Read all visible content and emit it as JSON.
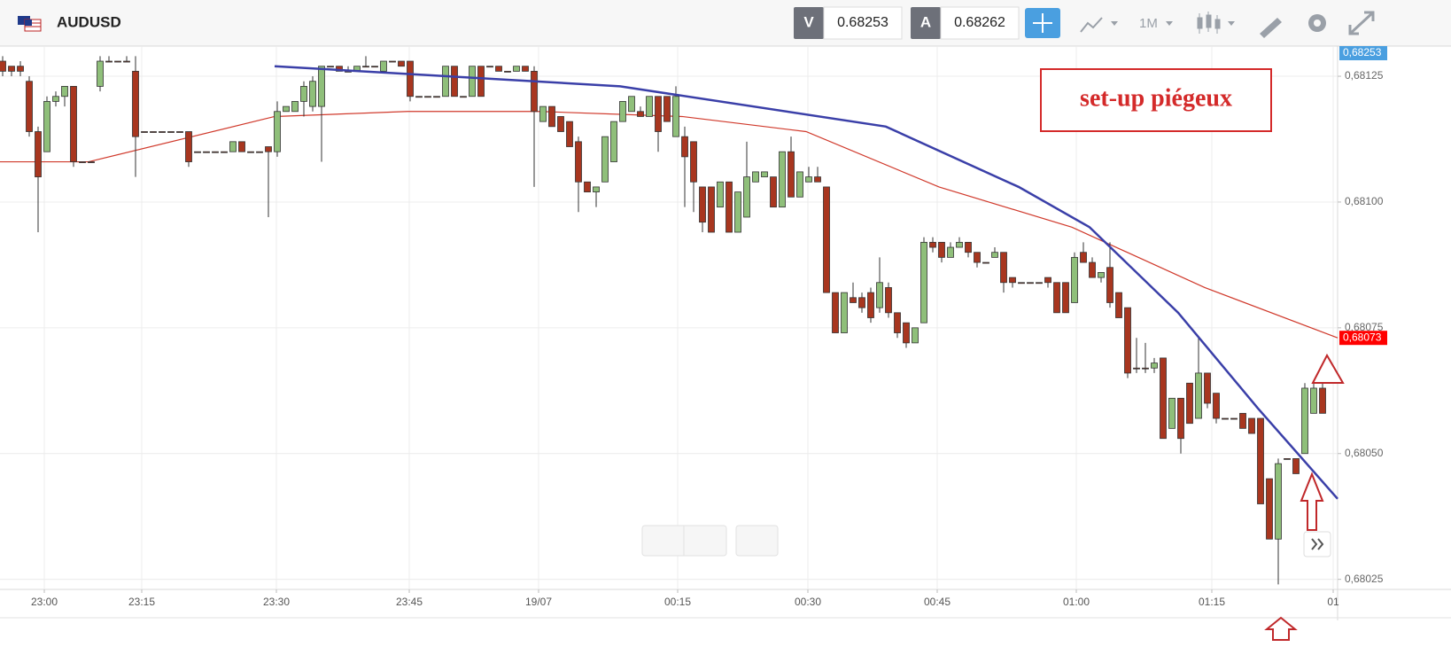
{
  "header": {
    "symbol": "AUDUSD",
    "bid_label": "V",
    "bid": 0.68253,
    "ask_label": "A",
    "ask": 0.68262,
    "timeframe": "1M"
  },
  "chart_data": {
    "type": "candlestick",
    "annotation": "set-up piégeux",
    "colors": {
      "up": "#8fbf7a",
      "down": "#a8361f"
    },
    "candles": [
      [
        0.68128,
        0.68129,
        0.68125,
        0.68126
      ],
      [
        0.68127,
        0.68127,
        0.68125,
        0.68126
      ],
      [
        0.68127,
        0.68128,
        0.68125,
        0.68126
      ],
      [
        0.68124,
        0.68125,
        0.68113,
        0.68114
      ],
      [
        0.68114,
        0.68115,
        0.68094,
        0.68105
      ],
      [
        0.6811,
        0.68121,
        0.6811,
        0.6812
      ],
      [
        0.6812,
        0.68122,
        0.68119,
        0.68121
      ],
      [
        0.68121,
        0.68123,
        0.68119,
        0.68123
      ],
      [
        0.68123,
        0.68123,
        0.68107,
        0.68108
      ],
      [
        0.68108,
        0.68108,
        0.68108,
        0.68108
      ],
      [
        0.68108,
        0.68108,
        0.68108,
        0.68108
      ],
      [
        0.68123,
        0.68129,
        0.68122,
        0.68128
      ],
      [
        0.68128,
        0.68129,
        0.68128,
        0.68128
      ],
      [
        0.68128,
        0.68128,
        0.68128,
        0.68128
      ],
      [
        0.68128,
        0.68129,
        0.68128,
        0.68128
      ],
      [
        0.68126,
        0.68129,
        0.68105,
        0.68113
      ],
      [
        0.68114,
        0.68114,
        0.68114,
        0.68114
      ],
      [
        0.68114,
        0.68114,
        0.68114,
        0.68114
      ],
      [
        0.68114,
        0.68114,
        0.68114,
        0.68114
      ],
      [
        0.68114,
        0.68114,
        0.68114,
        0.68114
      ],
      [
        0.68114,
        0.68114,
        0.68114,
        0.68114
      ],
      [
        0.68114,
        0.68114,
        0.68107,
        0.68108
      ],
      [
        0.6811,
        0.6811,
        0.6811,
        0.6811
      ],
      [
        0.6811,
        0.6811,
        0.6811,
        0.6811
      ],
      [
        0.6811,
        0.6811,
        0.6811,
        0.6811
      ],
      [
        0.6811,
        0.6811,
        0.6811,
        0.6811
      ],
      [
        0.6811,
        0.68112,
        0.6811,
        0.68112
      ],
      [
        0.68112,
        0.68112,
        0.6811,
        0.6811
      ],
      [
        0.6811,
        0.6811,
        0.6811,
        0.6811
      ],
      [
        0.6811,
        0.6811,
        0.6811,
        0.6811
      ],
      [
        0.68111,
        0.68111,
        0.68097,
        0.6811
      ],
      [
        0.6811,
        0.6812,
        0.68109,
        0.68118
      ],
      [
        0.68118,
        0.68119,
        0.68118,
        0.68119
      ],
      [
        0.68118,
        0.6812,
        0.68118,
        0.6812
      ],
      [
        0.6812,
        0.68124,
        0.68117,
        0.68123
      ],
      [
        0.68119,
        0.68125,
        0.68118,
        0.68124
      ],
      [
        0.68119,
        0.68127,
        0.68108,
        0.68127
      ],
      [
        0.68127,
        0.68127,
        0.68127,
        0.68127
      ],
      [
        0.68127,
        0.68127,
        0.68126,
        0.68126
      ],
      [
        0.68126,
        0.68127,
        0.68126,
        0.68126
      ],
      [
        0.68126,
        0.68127,
        0.68126,
        0.68127
      ],
      [
        0.68127,
        0.68129,
        0.68127,
        0.68127
      ],
      [
        0.68127,
        0.68127,
        0.68127,
        0.68127
      ],
      [
        0.68126,
        0.68128,
        0.68126,
        0.68128
      ],
      [
        0.68128,
        0.68128,
        0.68128,
        0.68128
      ],
      [
        0.68128,
        0.68128,
        0.68127,
        0.68127
      ],
      [
        0.68128,
        0.68128,
        0.6812,
        0.68121
      ],
      [
        0.68121,
        0.68121,
        0.68121,
        0.68121
      ],
      [
        0.68121,
        0.68121,
        0.68121,
        0.68121
      ],
      [
        0.68121,
        0.68121,
        0.68121,
        0.68121
      ],
      [
        0.68121,
        0.68127,
        0.68121,
        0.68127
      ],
      [
        0.68127,
        0.68127,
        0.68121,
        0.68121
      ],
      [
        0.68121,
        0.68121,
        0.68121,
        0.68121
      ],
      [
        0.68121,
        0.68127,
        0.68121,
        0.68127
      ],
      [
        0.68127,
        0.68127,
        0.68121,
        0.68121
      ],
      [
        0.68127,
        0.68127,
        0.68127,
        0.68127
      ],
      [
        0.68127,
        0.68127,
        0.68126,
        0.68126
      ],
      [
        0.68126,
        0.68126,
        0.68126,
        0.68126
      ],
      [
        0.68126,
        0.68127,
        0.68126,
        0.68127
      ],
      [
        0.68127,
        0.68127,
        0.68126,
        0.68126
      ],
      [
        0.68126,
        0.68127,
        0.68103,
        0.68118
      ],
      [
        0.68116,
        0.68119,
        0.68116,
        0.68119
      ],
      [
        0.68119,
        0.68119,
        0.68115,
        0.68115
      ],
      [
        0.68117,
        0.68117,
        0.68114,
        0.68114
      ],
      [
        0.68116,
        0.68116,
        0.68111,
        0.68111
      ],
      [
        0.68112,
        0.68113,
        0.68098,
        0.68104
      ],
      [
        0.68104,
        0.68104,
        0.68102,
        0.68102
      ],
      [
        0.68102,
        0.68103,
        0.68099,
        0.68103
      ],
      [
        0.68104,
        0.68113,
        0.68104,
        0.68113
      ],
      [
        0.68108,
        0.68116,
        0.68108,
        0.68116
      ],
      [
        0.68116,
        0.6812,
        0.68116,
        0.6812
      ],
      [
        0.68118,
        0.68121,
        0.68118,
        0.68121
      ],
      [
        0.68118,
        0.68119,
        0.68117,
        0.68117
      ],
      [
        0.68117,
        0.68121,
        0.68117,
        0.68121
      ],
      [
        0.68121,
        0.68121,
        0.6811,
        0.68114
      ],
      [
        0.68121,
        0.68121,
        0.68116,
        0.68116
      ],
      [
        0.68113,
        0.68123,
        0.68113,
        0.68121
      ],
      [
        0.68113,
        0.68115,
        0.68099,
        0.68109
      ],
      [
        0.68112,
        0.68112,
        0.68098,
        0.68104
      ],
      [
        0.68103,
        0.68103,
        0.68094,
        0.68096
      ],
      [
        0.68103,
        0.68103,
        0.68094,
        0.68094
      ],
      [
        0.68099,
        0.68104,
        0.68099,
        0.68104
      ],
      [
        0.68104,
        0.68104,
        0.68094,
        0.68094
      ],
      [
        0.68094,
        0.68102,
        0.68094,
        0.68102
      ],
      [
        0.68097,
        0.68112,
        0.68097,
        0.68105
      ],
      [
        0.68104,
        0.68106,
        0.68104,
        0.68106
      ],
      [
        0.68105,
        0.68106,
        0.68105,
        0.68106
      ],
      [
        0.68105,
        0.68105,
        0.68099,
        0.68099
      ],
      [
        0.68099,
        0.6811,
        0.68099,
        0.6811
      ],
      [
        0.6811,
        0.68113,
        0.68101,
        0.68101
      ],
      [
        0.68101,
        0.68106,
        0.68101,
        0.68106
      ],
      [
        0.68104,
        0.68107,
        0.68104,
        0.68105
      ],
      [
        0.68105,
        0.68107,
        0.68104,
        0.68104
      ],
      [
        0.68103,
        0.68103,
        0.68082,
        0.68082
      ],
      [
        0.68082,
        0.68082,
        0.68074,
        0.68074
      ],
      [
        0.68074,
        0.68082,
        0.68074,
        0.68082
      ],
      [
        0.68081,
        0.68084,
        0.6808,
        0.6808
      ],
      [
        0.68081,
        0.68082,
        0.68078,
        0.68079
      ],
      [
        0.68082,
        0.68083,
        0.68076,
        0.68077
      ],
      [
        0.68079,
        0.68089,
        0.68078,
        0.68084
      ],
      [
        0.68083,
        0.68084,
        0.68077,
        0.68078
      ],
      [
        0.68078,
        0.68078,
        0.68073,
        0.68074
      ],
      [
        0.68076,
        0.68076,
        0.68071,
        0.68072
      ],
      [
        0.68072,
        0.68075,
        0.68072,
        0.68075
      ],
      [
        0.68076,
        0.68093,
        0.68076,
        0.68092
      ],
      [
        0.68092,
        0.68093,
        0.6809,
        0.68091
      ],
      [
        0.68092,
        0.68092,
        0.68088,
        0.68089
      ],
      [
        0.68089,
        0.68092,
        0.68089,
        0.68091
      ],
      [
        0.68091,
        0.68093,
        0.68091,
        0.68092
      ],
      [
        0.68092,
        0.68092,
        0.68089,
        0.6809
      ],
      [
        0.6809,
        0.6809,
        0.68087,
        0.68088
      ],
      [
        0.68088,
        0.68088,
        0.68088,
        0.68088
      ],
      [
        0.68089,
        0.68091,
        0.68089,
        0.6809
      ],
      [
        0.6809,
        0.6809,
        0.68082,
        0.68084
      ],
      [
        0.68085,
        0.68085,
        0.68083,
        0.68084
      ],
      [
        0.68084,
        0.68084,
        0.68084,
        0.68084
      ],
      [
        0.68084,
        0.68084,
        0.68084,
        0.68084
      ],
      [
        0.68084,
        0.68084,
        0.68084,
        0.68084
      ],
      [
        0.68085,
        0.68085,
        0.68083,
        0.68084
      ],
      [
        0.68084,
        0.68084,
        0.68078,
        0.68078
      ],
      [
        0.68084,
        0.68084,
        0.68078,
        0.68078
      ],
      [
        0.6808,
        0.6809,
        0.6808,
        0.68089
      ],
      [
        0.6809,
        0.68092,
        0.68088,
        0.68088
      ],
      [
        0.68088,
        0.68089,
        0.68085,
        0.68085
      ],
      [
        0.68085,
        0.68086,
        0.68084,
        0.68086
      ],
      [
        0.68087,
        0.68092,
        0.68079,
        0.6808
      ],
      [
        0.68082,
        0.68082,
        0.68077,
        0.68077
      ],
      [
        0.68079,
        0.68079,
        0.68065,
        0.68066
      ],
      [
        0.68067,
        0.68073,
        0.68066,
        0.68067
      ],
      [
        0.68067,
        0.68072,
        0.68066,
        0.68067
      ],
      [
        0.68067,
        0.68069,
        0.68066,
        0.68068
      ],
      [
        0.68069,
        0.68069,
        0.68053,
        0.68053
      ],
      [
        0.68055,
        0.68061,
        0.68055,
        0.68061
      ],
      [
        0.68061,
        0.68061,
        0.6805,
        0.68053
      ],
      [
        0.68064,
        0.68064,
        0.68056,
        0.68056
      ],
      [
        0.68057,
        0.68073,
        0.68057,
        0.68066
      ],
      [
        0.68066,
        0.68066,
        0.68059,
        0.6806
      ],
      [
        0.68062,
        0.68062,
        0.68056,
        0.68057
      ],
      [
        0.68057,
        0.68057,
        0.68057,
        0.68057
      ],
      [
        0.68057,
        0.68057,
        0.68057,
        0.68057
      ],
      [
        0.68058,
        0.68058,
        0.68055,
        0.68055
      ],
      [
        0.68057,
        0.68057,
        0.68054,
        0.68054
      ],
      [
        0.68057,
        0.68057,
        0.6804,
        0.6804
      ],
      [
        0.68045,
        0.68045,
        0.68033,
        0.68033
      ],
      [
        0.68033,
        0.68049,
        0.68024,
        0.68048
      ],
      [
        0.68049,
        0.68049,
        0.68049,
        0.68049
      ],
      [
        0.68049,
        0.68049,
        0.68046,
        0.68046
      ],
      [
        0.6805,
        0.68064,
        0.6805,
        0.68063
      ],
      [
        0.68058,
        0.68064,
        0.68058,
        0.68063
      ],
      [
        0.68063,
        0.68064,
        0.68058,
        0.68058
      ]
    ],
    "xlim": [
      -0.3,
      150.7
    ],
    "xticks": [
      {
        "value": 4.7,
        "label": "23:00"
      },
      {
        "value": 15.7,
        "label": "23:15"
      },
      {
        "value": 30.9,
        "label": "23:30"
      },
      {
        "value": 45.9,
        "label": "23:45"
      },
      {
        "value": 60.5,
        "label": "19/07"
      },
      {
        "value": 76.2,
        "label": "00:15"
      },
      {
        "value": 90.9,
        "label": "00:30"
      },
      {
        "value": 105.5,
        "label": "00:45"
      },
      {
        "value": 121.2,
        "label": "01:00"
      },
      {
        "value": 136.5,
        "label": "01:15"
      },
      {
        "value": 150.2,
        "label": "01"
      }
    ],
    "ylim": [
      0.68023,
      0.68131
    ],
    "yticks": [
      {
        "value": 0.68025,
        "label": "0,68025"
      },
      {
        "value": 0.6805,
        "label": "0,68050"
      },
      {
        "value": 0.68075,
        "label": "0,68075"
      },
      {
        "value": 0.681,
        "label": "0,68100"
      },
      {
        "value": 0.68125,
        "label": "0,68125"
      }
    ],
    "grid": true,
    "last_price_label": "0,68253",
    "ma": {
      "color": "#d0392b",
      "x": [
        -0.3,
        9.7,
        30.7,
        45.7,
        60.7,
        76.7,
        90.7,
        105.7,
        120.7,
        135.7,
        150.7
      ],
      "values": [
        0.68108,
        0.68108,
        0.68117,
        0.68118,
        0.68118,
        0.68117,
        0.68114,
        0.68103,
        0.68095,
        0.68083,
        0.68073
      ],
      "last": {
        "value": 0.68073,
        "label": "0,68073"
      }
    },
    "trendline": {
      "color": "#3a3fa8",
      "x": [
        30.7,
        69.7,
        99.7,
        114.7,
        122.7,
        132.7,
        141.7,
        150.7
      ],
      "values": [
        0.68127,
        0.68123,
        0.68115,
        0.68103,
        0.68095,
        0.68078,
        0.68059,
        0.68041
      ]
    }
  }
}
